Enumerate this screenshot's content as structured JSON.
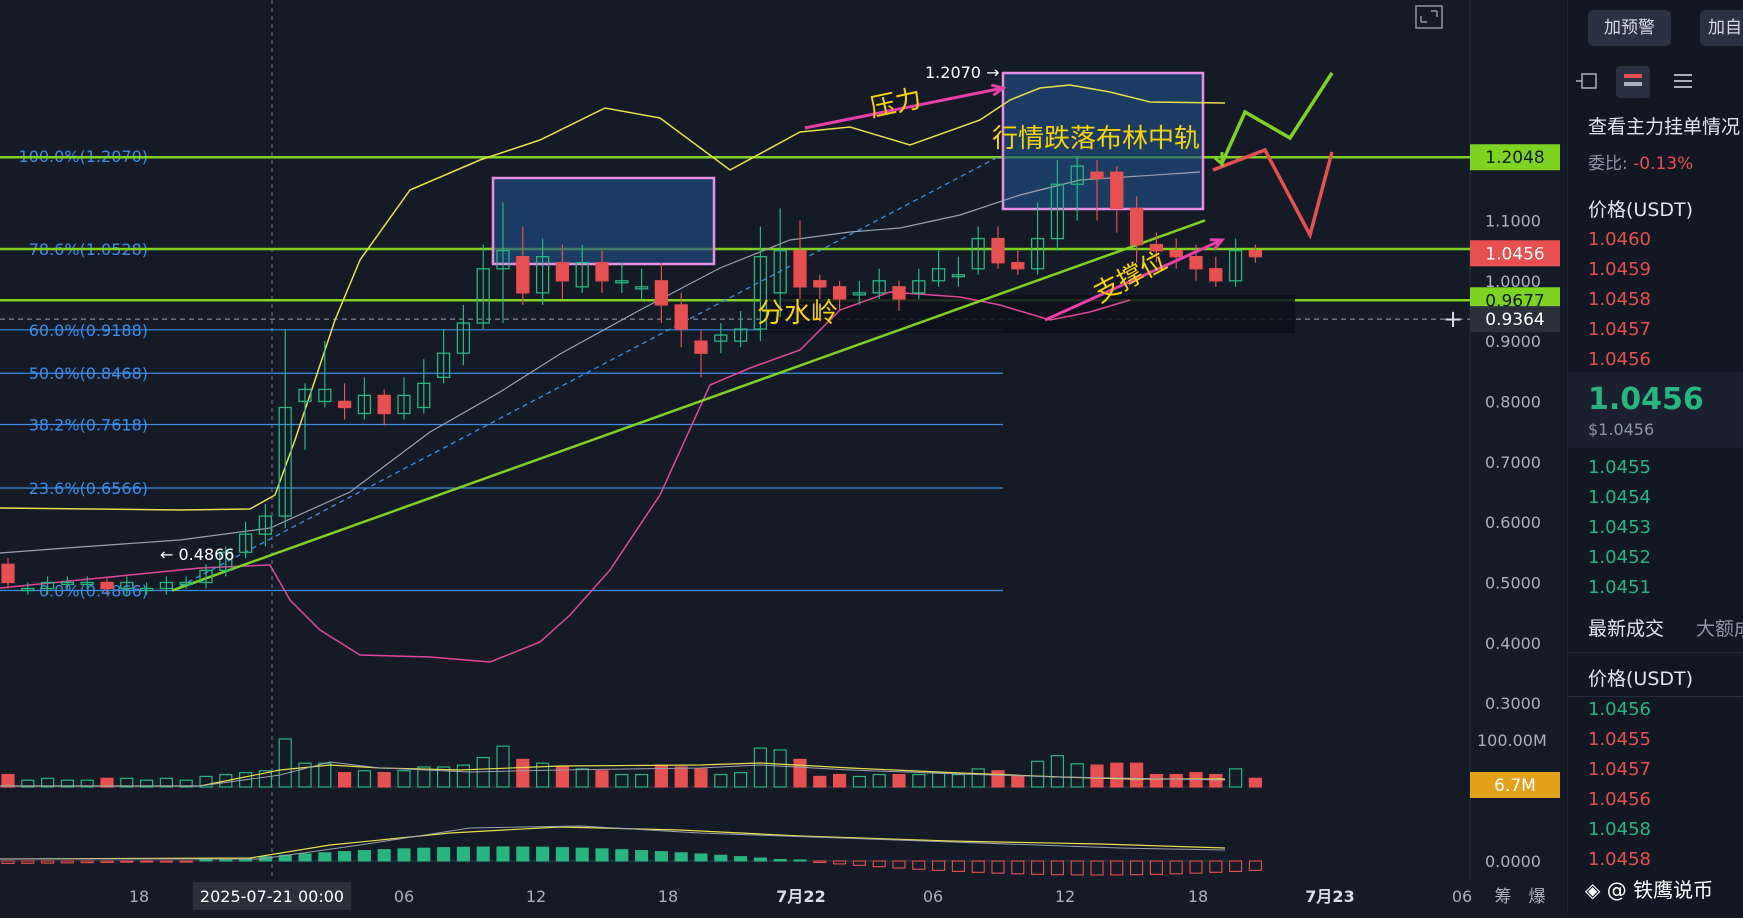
{
  "colors": {
    "background": "#151a27",
    "up": "#26b67f",
    "down": "#e84f4f",
    "fib": "#3a8ee6",
    "level_green": "#7ed321",
    "box_fill": "#1e4f84",
    "box_border": "#e98ee6",
    "annotation": "#f5d400",
    "arrow": "#e93fa8",
    "bb_upper": "#e8e04a",
    "bb_lower": "#e0479b",
    "bb_mid": "#9aa0b0"
  },
  "chart_data": {
    "type": "candlestick",
    "title": "",
    "ylim": [
      0.2,
      1.25
    ],
    "y_ticks": [
      "1.1000",
      "1.0000",
      "0.9000",
      "0.8000",
      "0.7000",
      "0.6000",
      "0.5000",
      "0.4000",
      "0.3000"
    ],
    "x_ticks": [
      "18",
      "2025-07-21 00:00",
      "06",
      "12",
      "18",
      "7月22",
      "06",
      "12",
      "18",
      "7月23",
      "06"
    ],
    "fib_levels": [
      {
        "label": "100.0%(1.2070)",
        "value": 1.207
      },
      {
        "label": "78.6%(1.0528)",
        "value": 1.0528
      },
      {
        "label": "60.0%(0.9188)",
        "value": 0.9188
      },
      {
        "label": "50.0%(0.8468)",
        "value": 0.8468
      },
      {
        "label": "38.2%(0.7618)",
        "value": 0.7618
      },
      {
        "label": "23.6%(0.6566)",
        "value": 0.6566
      },
      {
        "label": "0.0%(0.4866)",
        "value": 0.4866
      }
    ],
    "price_tags": [
      {
        "text": "1.2048",
        "value": 1.2048,
        "style": "green"
      },
      {
        "text": "1.0456",
        "value": 1.0456,
        "style": "red"
      },
      {
        "text": "0.9677",
        "value": 0.9677,
        "style": "green"
      },
      {
        "text": "0.9364",
        "value": 0.9364,
        "style": "gray"
      }
    ],
    "marks": {
      "high": "1.2070",
      "low": "0.4866"
    },
    "annotations": [
      "压力",
      "行情跌落布林中轨",
      "分水岭",
      "支撑位"
    ],
    "volume": {
      "tick": "100.00M",
      "tag": "6.7M"
    },
    "macd_tick": "0.0000",
    "bottom_right_labels": [
      "筹",
      "爆"
    ],
    "candles": [
      [
        0.53,
        0.5,
        0.54,
        0.49
      ],
      [
        0.49,
        0.49,
        0.5,
        0.48
      ],
      [
        0.49,
        0.5,
        0.51,
        0.48
      ],
      [
        0.5,
        0.5,
        0.51,
        0.49
      ],
      [
        0.5,
        0.5,
        0.51,
        0.49
      ],
      [
        0.5,
        0.49,
        0.51,
        0.48
      ],
      [
        0.49,
        0.5,
        0.51,
        0.48
      ],
      [
        0.49,
        0.49,
        0.5,
        0.48
      ],
      [
        0.49,
        0.5,
        0.51,
        0.48
      ],
      [
        0.5,
        0.5,
        0.51,
        0.49
      ],
      [
        0.5,
        0.52,
        0.53,
        0.49
      ],
      [
        0.52,
        0.55,
        0.56,
        0.51
      ],
      [
        0.55,
        0.58,
        0.6,
        0.54
      ],
      [
        0.58,
        0.61,
        0.63,
        0.56
      ],
      [
        0.61,
        0.79,
        0.92,
        0.59
      ],
      [
        0.8,
        0.82,
        0.83,
        0.72
      ],
      [
        0.8,
        0.82,
        0.9,
        0.79
      ],
      [
        0.8,
        0.79,
        0.83,
        0.77
      ],
      [
        0.78,
        0.81,
        0.84,
        0.77
      ],
      [
        0.81,
        0.78,
        0.82,
        0.76
      ],
      [
        0.78,
        0.81,
        0.84,
        0.77
      ],
      [
        0.79,
        0.83,
        0.87,
        0.78
      ],
      [
        0.84,
        0.88,
        0.92,
        0.83
      ],
      [
        0.88,
        0.93,
        0.96,
        0.86
      ],
      [
        0.93,
        1.02,
        1.06,
        0.92
      ],
      [
        1.02,
        1.05,
        1.13,
        0.93
      ],
      [
        1.04,
        0.98,
        1.09,
        0.96
      ],
      [
        0.98,
        1.04,
        1.07,
        0.96
      ],
      [
        1.03,
        1.0,
        1.06,
        0.97
      ],
      [
        0.99,
        1.03,
        1.06,
        0.98
      ],
      [
        1.03,
        1.0,
        1.05,
        0.98
      ],
      [
        1.0,
        1.0,
        1.03,
        0.98
      ],
      [
        0.99,
        0.99,
        1.02,
        0.97
      ],
      [
        1.0,
        0.96,
        1.03,
        0.93
      ],
      [
        0.96,
        0.92,
        0.98,
        0.89
      ],
      [
        0.9,
        0.88,
        0.92,
        0.84
      ],
      [
        0.9,
        0.91,
        0.93,
        0.88
      ],
      [
        0.9,
        0.92,
        0.95,
        0.89
      ],
      [
        0.92,
        1.04,
        1.09,
        0.9
      ],
      [
        0.98,
        1.05,
        1.12,
        0.94
      ],
      [
        1.05,
        0.99,
        1.1,
        0.97
      ],
      [
        1.0,
        0.99,
        1.01,
        0.97
      ],
      [
        0.99,
        0.97,
        1.0,
        0.95
      ],
      [
        0.98,
        0.98,
        1.0,
        0.96
      ],
      [
        0.98,
        1.0,
        1.02,
        0.97
      ],
      [
        0.99,
        0.97,
        1.0,
        0.95
      ],
      [
        0.98,
        1.0,
        1.02,
        0.97
      ],
      [
        1.0,
        1.02,
        1.05,
        0.99
      ],
      [
        1.01,
        1.01,
        1.04,
        0.99
      ],
      [
        1.02,
        1.07,
        1.09,
        1.01
      ],
      [
        1.07,
        1.03,
        1.09,
        1.02
      ],
      [
        1.03,
        1.02,
        1.05,
        1.01
      ],
      [
        1.02,
        1.07,
        1.13,
        1.01
      ],
      [
        1.07,
        1.16,
        1.2,
        1.05
      ],
      [
        1.16,
        1.19,
        1.207,
        1.1
      ],
      [
        1.18,
        1.17,
        1.2,
        1.1
      ],
      [
        1.18,
        1.12,
        1.19,
        1.08
      ],
      [
        1.12,
        1.06,
        1.14,
        1.03
      ],
      [
        1.06,
        1.05,
        1.08,
        1.03
      ],
      [
        1.05,
        1.04,
        1.07,
        1.02
      ],
      [
        1.04,
        1.02,
        1.06,
        1.0
      ],
      [
        1.02,
        1.0,
        1.04,
        0.99
      ],
      [
        1.0,
        1.05,
        1.07,
        0.99
      ],
      [
        1.05,
        1.04,
        1.06,
        1.03
      ]
    ]
  },
  "sidebar": {
    "buttons": [
      "加预警",
      "加自"
    ],
    "orderbook_title": "查看主力挂单情况",
    "ratio_label": "委比:",
    "ratio_value": "-0.13%",
    "price_header": "价格(USDT)",
    "asks": [
      "1.0460",
      "1.0459",
      "1.0458",
      "1.0457",
      "1.0456"
    ],
    "last_price": "1.0456",
    "last_price_usd": "$1.0456",
    "bids": [
      "1.0455",
      "1.0454",
      "1.0453",
      "1.0452",
      "1.0451"
    ],
    "trades_tab": "最新成交",
    "trades_tab2": "大额成",
    "trades_header": "价格(USDT)",
    "trades": [
      {
        "price": "1.0456",
        "side": "buy"
      },
      {
        "price": "1.0455",
        "side": "sell"
      },
      {
        "price": "1.0457",
        "side": "sell"
      },
      {
        "price": "1.0456",
        "side": "sell"
      },
      {
        "price": "1.0458",
        "side": "buy"
      },
      {
        "price": "1.0458",
        "side": "sell"
      }
    ]
  },
  "watermark": "@ 铁鹰说币"
}
